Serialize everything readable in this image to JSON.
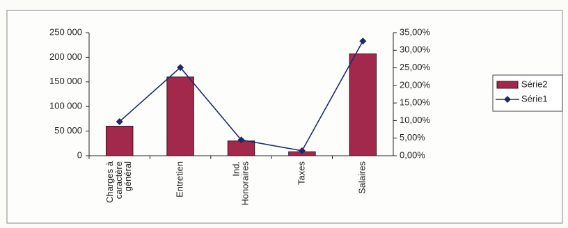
{
  "chart_data": {
    "type": "bar-line",
    "categories": [
      [
        "Charges à",
        "caractère",
        "général"
      ],
      [
        "Entretien"
      ],
      [
        "Ind.",
        "Honoraires"
      ],
      [
        "Taxes"
      ],
      [
        "Salaires"
      ]
    ],
    "series": [
      {
        "name": "Série2",
        "type": "bar",
        "color": "#a3294c",
        "values": [
          60000,
          160000,
          30000,
          8000,
          207000
        ]
      },
      {
        "name": "Série1",
        "type": "line",
        "axis": "y2",
        "color": "#1c2a6b",
        "values": [
          9.7,
          25.1,
          4.5,
          1.4,
          32.6
        ]
      }
    ],
    "ylim": [
      0,
      250000
    ],
    "yticks": [
      0,
      {
        "value": 50000,
        "label": "50 000"
      },
      {
        "value": 100000,
        "label": "100 000"
      },
      {
        "value": 150000,
        "label": "150 000"
      },
      {
        "value": 200000,
        "label": "200 000"
      },
      {
        "value": 250000,
        "label": "250 000"
      }
    ],
    "y2lim": [
      0,
      35
    ],
    "y2ticks": [
      {
        "value": 0,
        "label": "0,00%"
      },
      {
        "value": 5,
        "label": "5,00%"
      },
      {
        "value": 10,
        "label": "10,00%"
      },
      {
        "value": 15,
        "label": "15,00%"
      },
      {
        "value": 20,
        "label": "20,00%"
      },
      {
        "value": 25,
        "label": "25,00%"
      },
      {
        "value": 30,
        "label": "30,00%"
      },
      {
        "value": 35,
        "label": "35,00%"
      }
    ],
    "legend": "right"
  }
}
